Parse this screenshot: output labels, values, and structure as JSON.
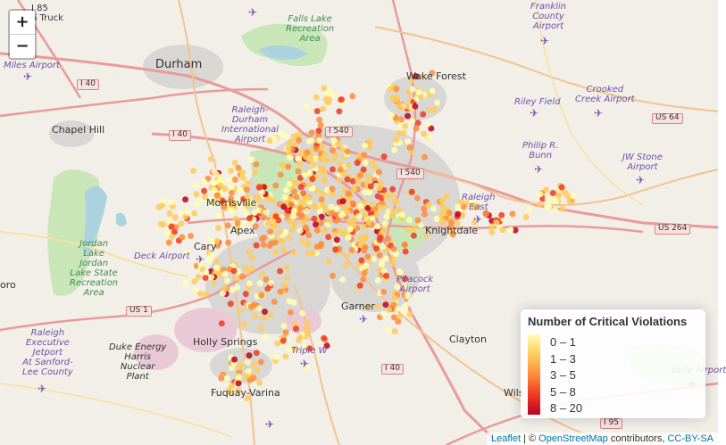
{
  "map": {
    "zoom_in_label": "+",
    "zoom_out_label": "−",
    "place_labels": {
      "durham": "Durham",
      "chapel_hill": "Chapel Hill",
      "knightdale": "Knightdale",
      "clayton": "Clayton",
      "holly_springs": "Holly Springs",
      "fuquay": "Fuquay-Varina",
      "wake_forest": "Wake Forest",
      "apex": "Apex",
      "cary": "Cary",
      "morrisville": "Morrisville",
      "garner": "Garner",
      "oro": "oro",
      "wils": "Wils",
      "i85_truck": "I 85\n6 Truck"
    },
    "airport_labels": {
      "miles": "Miles Airport",
      "franklin": "Franklin\nCounty\nAirport",
      "rdu": "Raleigh-\nDurham\nInternational\nAirport",
      "riley": "Riley Field",
      "crooked": "Crooked\nCreek Airport",
      "philip": "Philip R.\nBunn",
      "jw_stone": "JW Stone\nAirport",
      "raleigh_east": "Raleigh\nEast",
      "deck": "Deck Airport",
      "peacock": "Peacock\nAirport",
      "raleigh_exec": "Raleigh\nExecutive\nJetport\nAt Sanford-\nLee County",
      "duke_energy": "Duke Energy\nHarris\nNuclear\nPlant",
      "triple_w": "Triple W",
      "kelly": "Kelly Airport"
    },
    "park_labels": {
      "falls_lake": "Falls Lake\nRecreation\nArea",
      "jordan_lake": "Jordan\nLake\nJordan\nLake State\nRecreation\nArea"
    },
    "road_labels": {
      "i40_a": "I 40",
      "i40_b": "I 40",
      "i40_c": "I 40",
      "i540": "I 540",
      "i540_b": "I 540",
      "us64": "US 64",
      "us264": "US 264",
      "us1": "US 1",
      "i95": "I 95"
    }
  },
  "legend": {
    "title": "Number of Critical Violations",
    "bins": [
      {
        "label": "0 – 1",
        "color": "#ffffb2"
      },
      {
        "label": "1 – 3",
        "color": "#fecc5c"
      },
      {
        "label": "3 – 5",
        "color": "#fd8d3c"
      },
      {
        "label": "5 – 8",
        "color": "#f03b20"
      },
      {
        "label": "8 – 20",
        "color": "#bd0026"
      }
    ]
  },
  "attribution": {
    "leaflet": "Leaflet",
    "sep": " | © ",
    "osm": "OpenStreetMap",
    "contributors": " contributors, ",
    "license": "CC-BY-SA"
  }
}
